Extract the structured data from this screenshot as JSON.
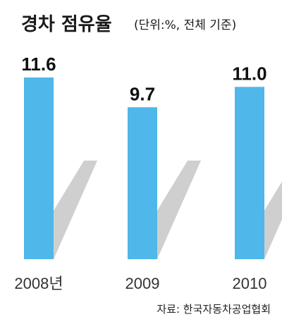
{
  "header": {
    "title": "경차 점유율",
    "subtitle": "(단위:%, 전체 기준)"
  },
  "source": "자료: 한국자동차공업협회",
  "colors": {
    "bar": "#4fb7e9",
    "shadow": "#cfcfcf",
    "text": "#1a1a1a"
  },
  "chart_data": {
    "type": "bar",
    "title": "경차 점유율",
    "subtitle": "(단위:%, 전체 기준)",
    "categories": [
      "2008년",
      "2009",
      "2010"
    ],
    "values": [
      11.6,
      9.7,
      11.0
    ],
    "value_labels": [
      "11.6",
      "9.7",
      "11.0"
    ],
    "xlabel": "",
    "ylabel": "",
    "ylim": [
      0,
      13
    ],
    "grid": false,
    "legend": "none"
  }
}
